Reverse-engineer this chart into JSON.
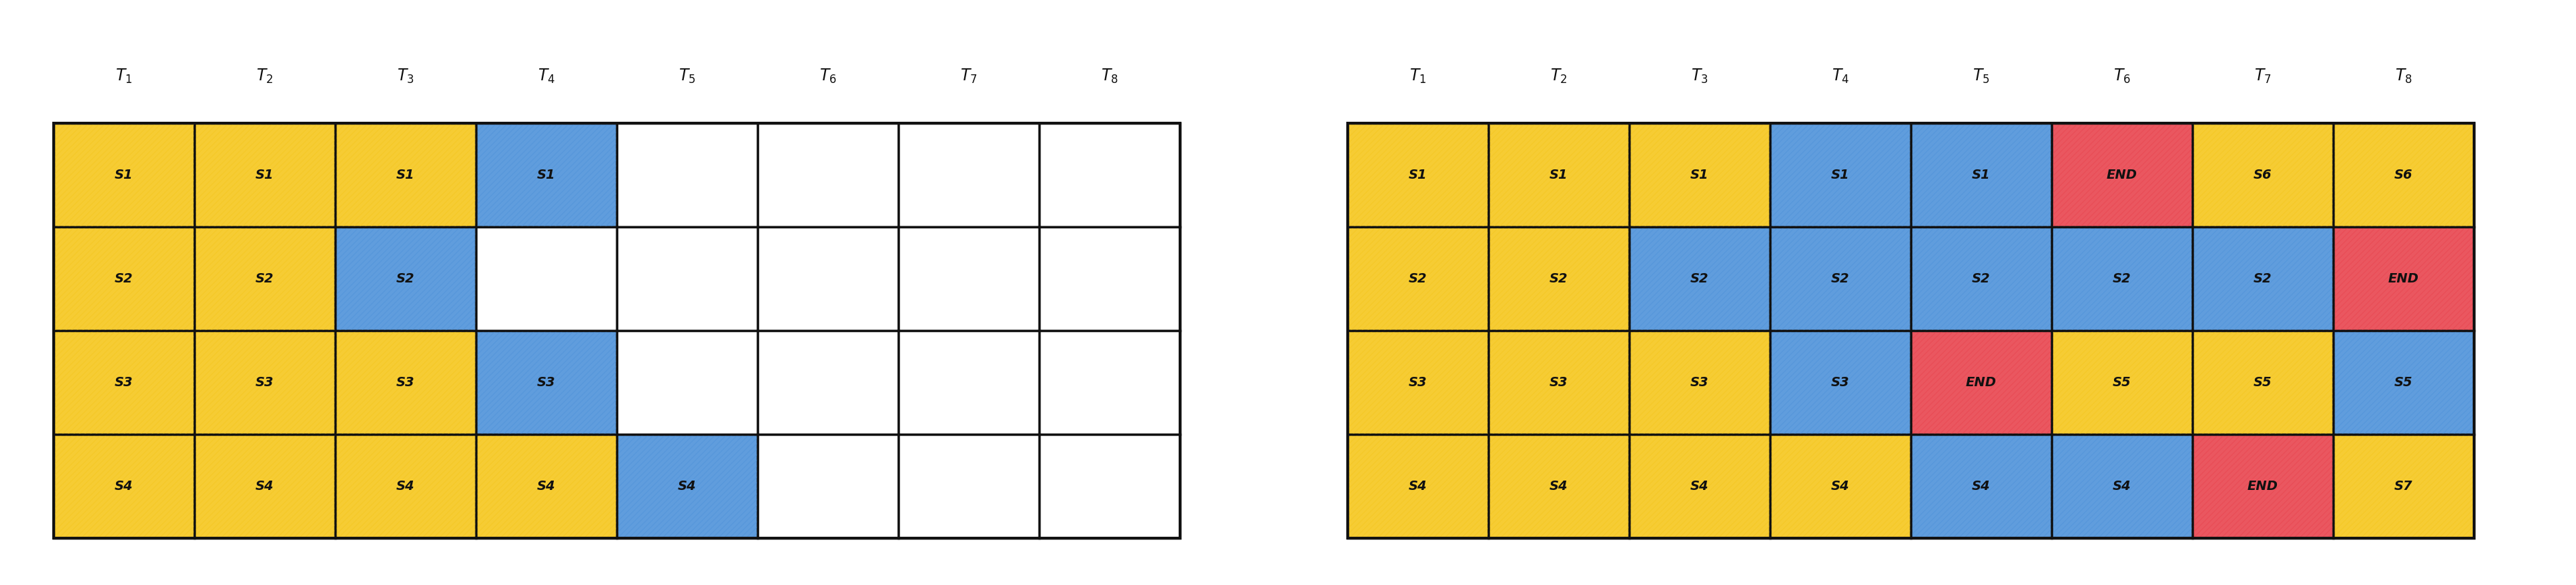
{
  "left_grid": {
    "rows": 4,
    "cols": 8,
    "col_labels": [
      "T_1",
      "T_2",
      "T_3",
      "T_4",
      "T_5",
      "T_6",
      "T_7",
      "T_8"
    ],
    "cells": [
      [
        [
          "yellow",
          "S_1"
        ],
        [
          "yellow",
          "S_1"
        ],
        [
          "yellow",
          "S_1"
        ],
        [
          "blue",
          "S_1"
        ],
        [
          "white",
          ""
        ],
        [
          "white",
          ""
        ],
        [
          "white",
          ""
        ],
        [
          "white",
          ""
        ]
      ],
      [
        [
          "yellow",
          "S_2"
        ],
        [
          "yellow",
          "S_2"
        ],
        [
          "blue",
          "S_2"
        ],
        [
          "white",
          ""
        ],
        [
          "white",
          ""
        ],
        [
          "white",
          ""
        ],
        [
          "white",
          ""
        ],
        [
          "white",
          ""
        ]
      ],
      [
        [
          "yellow",
          "S_3"
        ],
        [
          "yellow",
          "S_3"
        ],
        [
          "yellow",
          "S_3"
        ],
        [
          "blue",
          "S_3"
        ],
        [
          "white",
          ""
        ],
        [
          "white",
          ""
        ],
        [
          "white",
          ""
        ],
        [
          "white",
          ""
        ]
      ],
      [
        [
          "yellow",
          "S_4"
        ],
        [
          "yellow",
          "S_4"
        ],
        [
          "yellow",
          "S_4"
        ],
        [
          "yellow",
          "S_4"
        ],
        [
          "blue",
          "S_4"
        ],
        [
          "white",
          ""
        ],
        [
          "white",
          ""
        ],
        [
          "white",
          ""
        ]
      ]
    ]
  },
  "right_grid": {
    "rows": 4,
    "cols": 8,
    "col_labels": [
      "T_1",
      "T_2",
      "T_3",
      "T_4",
      "T_5",
      "T_6",
      "T_7",
      "T_8"
    ],
    "cells": [
      [
        [
          "yellow",
          "S_1"
        ],
        [
          "yellow",
          "S_1"
        ],
        [
          "yellow",
          "S_1"
        ],
        [
          "blue",
          "S_1"
        ],
        [
          "blue",
          "S_1"
        ],
        [
          "red",
          "END"
        ],
        [
          "yellow",
          "S_6"
        ],
        [
          "yellow",
          "S_6"
        ]
      ],
      [
        [
          "yellow",
          "S_2"
        ],
        [
          "yellow",
          "S_2"
        ],
        [
          "blue",
          "S_2"
        ],
        [
          "blue",
          "S_2"
        ],
        [
          "blue",
          "S_2"
        ],
        [
          "blue",
          "S_2"
        ],
        [
          "blue",
          "S_2"
        ],
        [
          "red",
          "END"
        ]
      ],
      [
        [
          "yellow",
          "S_3"
        ],
        [
          "yellow",
          "S_3"
        ],
        [
          "yellow",
          "S_3"
        ],
        [
          "blue",
          "S_3"
        ],
        [
          "red",
          "END"
        ],
        [
          "yellow",
          "S_5"
        ],
        [
          "yellow",
          "S_5"
        ],
        [
          "blue",
          "S_5"
        ]
      ],
      [
        [
          "yellow",
          "S_4"
        ],
        [
          "yellow",
          "S_4"
        ],
        [
          "yellow",
          "S_4"
        ],
        [
          "yellow",
          "S_4"
        ],
        [
          "blue",
          "S_4"
        ],
        [
          "blue",
          "S_4"
        ],
        [
          "red",
          "END"
        ],
        [
          "yellow",
          "S_7"
        ]
      ]
    ]
  },
  "colors": {
    "yellow": "#F5C518",
    "blue": "#4A90D9",
    "red": "#E8404A",
    "white": "#FFFFFF",
    "grid_line": "#111111",
    "text": "#111111",
    "bg": "#FFFFFF"
  },
  "hatch_alpha": 0.85
}
